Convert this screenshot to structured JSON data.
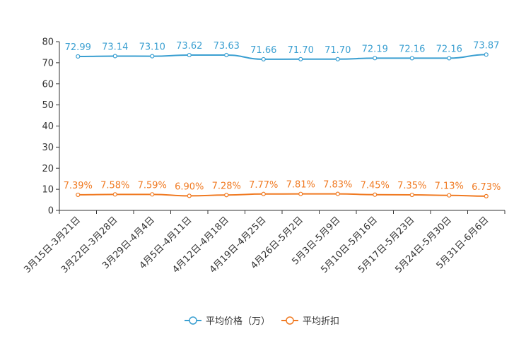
{
  "chart_data": {
    "type": "line",
    "categories": [
      "3月15日-3月21日",
      "3月22日-3月28日",
      "3月29日-4月4日",
      "4月5日-4月11日",
      "4月12日-4月18日",
      "4月19日-4月25日",
      "4月26日-5月2日",
      "5月3日-5月9日",
      "5月10日-5月16日",
      "5月17日-5月23日",
      "5月24日-5月30日",
      "5月31日-6月6日"
    ],
    "ylim": [
      0,
      80
    ],
    "yticks": [
      0,
      10,
      20,
      30,
      40,
      50,
      60,
      70,
      80
    ],
    "series": [
      {
        "name": "平均价格（万）",
        "color": "#3a9fd1",
        "values": [
          72.99,
          73.14,
          73.1,
          73.62,
          73.63,
          71.66,
          71.7,
          71.7,
          72.19,
          72.16,
          72.16,
          73.87
        ],
        "labels": [
          "72.99",
          "73.14",
          "73.10",
          "73.62",
          "73.63",
          "71.66",
          "71.70",
          "71.70",
          "72.19",
          "72.16",
          "72.16",
          "73.87"
        ]
      },
      {
        "name": "平均折扣",
        "color": "#f07a22",
        "values": [
          7.39,
          7.58,
          7.59,
          6.9,
          7.28,
          7.77,
          7.81,
          7.83,
          7.45,
          7.35,
          7.13,
          6.73
        ],
        "labels": [
          "7.39%",
          "7.58%",
          "7.59%",
          "6.90%",
          "7.28%",
          "7.77%",
          "7.81%",
          "7.83%",
          "7.45%",
          "7.35%",
          "7.13%",
          "6.73%"
        ]
      }
    ],
    "legend_position": "bottom-center"
  }
}
